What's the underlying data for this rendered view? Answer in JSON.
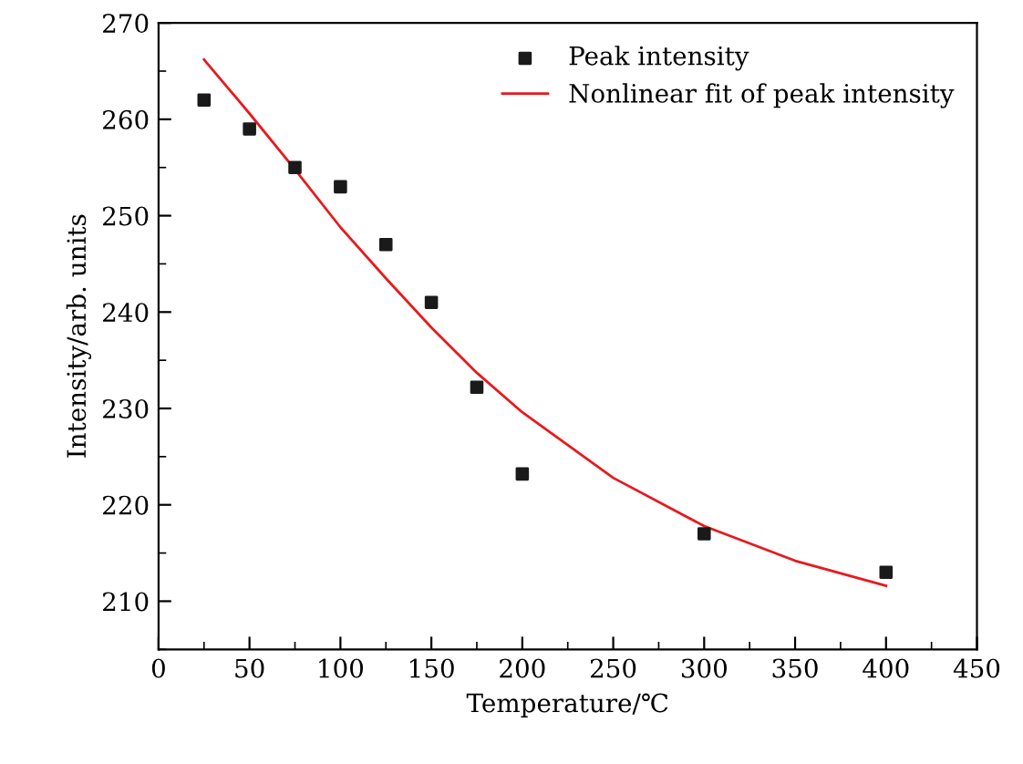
{
  "chart_data": {
    "type": "scatter",
    "xlabel": "Temperature/℃",
    "ylabel": "Intensity/arb. units",
    "xlim": [
      0,
      450
    ],
    "xticks": [
      0,
      50,
      100,
      150,
      200,
      250,
      300,
      350,
      400,
      450
    ],
    "ylim": [
      205,
      270
    ],
    "yticks": [
      210,
      220,
      230,
      240,
      250,
      260,
      270
    ],
    "legend": "top right",
    "grid": false,
    "series": [
      {
        "name": "Peak intensity",
        "marker": "square",
        "color": "#1a1a1a",
        "x": [
          25,
          50,
          75,
          100,
          125,
          150,
          175,
          200,
          300,
          400
        ],
        "values": [
          262,
          259,
          255,
          253,
          247,
          241,
          232.2,
          223.2,
          217,
          213
        ]
      },
      {
        "name": "Nonlinear fit of peak intensity",
        "type": "line",
        "marker": "none",
        "line_style": "solid",
        "color": "#e8191e",
        "x": [
          25,
          50,
          75,
          100,
          125,
          150,
          175,
          200,
          250,
          300,
          350,
          400
        ],
        "values": [
          266.2,
          260.6,
          254.8,
          248.8,
          243.5,
          238.4,
          233.7,
          229.6,
          222.8,
          217.8,
          214.2,
          211.6
        ]
      }
    ]
  }
}
